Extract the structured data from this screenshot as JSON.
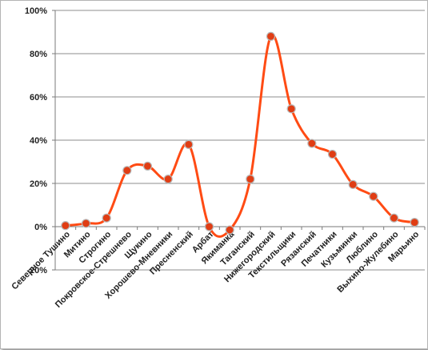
{
  "chart_data": {
    "type": "line",
    "smooth": true,
    "title": "",
    "xlabel": "",
    "ylabel": "",
    "ylim": [
      -0.2,
      1.0
    ],
    "yticks": [
      {
        "value": -0.2,
        "label": "-20%"
      },
      {
        "value": 0.0,
        "label": "0%"
      },
      {
        "value": 0.2,
        "label": "20%"
      },
      {
        "value": 0.4,
        "label": "40%"
      },
      {
        "value": 0.6,
        "label": "60%"
      },
      {
        "value": 0.8,
        "label": "80%"
      },
      {
        "value": 1.0,
        "label": "100%"
      }
    ],
    "grid": "horizontal",
    "legend": "none",
    "categories": [
      "Северное Тушино",
      "Митино",
      "Строгино",
      "Покровское-Стрешнево",
      "Щукино",
      "Хорошево-Мневники",
      "Пресненский",
      "Арбат",
      "Якиманка",
      "Таганский",
      "Нижегородский",
      "Текстильщики",
      "Рязанский",
      "Печатники",
      "Кузьминки",
      "Люблино",
      "Выхино-Жулебино",
      "Марьино"
    ],
    "series": [
      {
        "line_color": "#ff4b14",
        "marker_color": "#e03d14",
        "values": [
          0.005,
          0.015,
          0.04,
          0.26,
          0.28,
          0.22,
          0.38,
          0.0,
          -0.015,
          0.22,
          0.88,
          0.545,
          0.385,
          0.335,
          0.195,
          0.14,
          0.04,
          0.02
        ]
      }
    ]
  }
}
